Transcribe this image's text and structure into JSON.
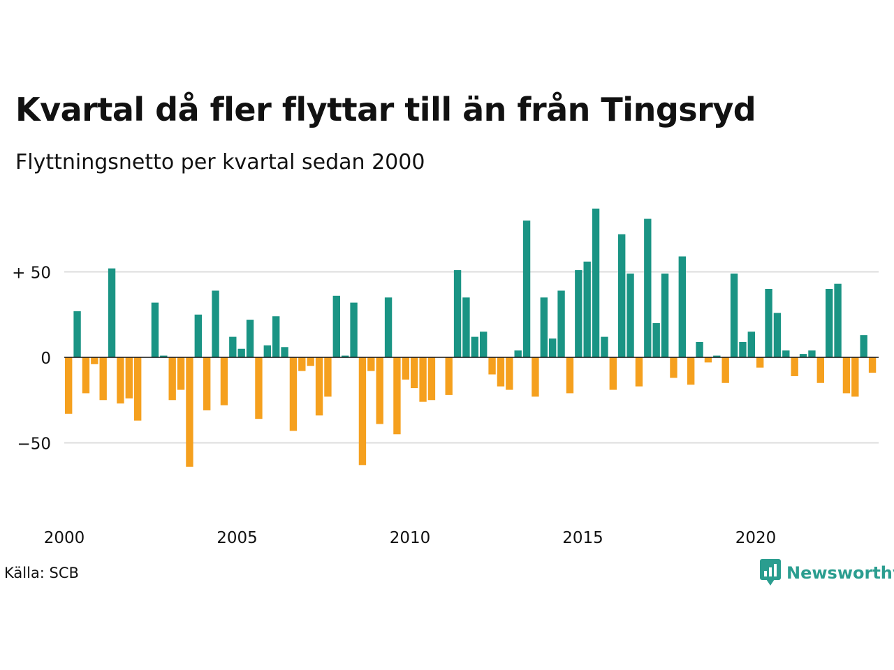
{
  "header": {
    "title": "Kvartal då fler flyttar till än från Tingsryd",
    "subtitle": "Flyttningsnetto per kvartal sedan 2000"
  },
  "footer": {
    "source": "Källa: SCB",
    "brand_name": "Newsworthy",
    "brand_icon": "bar-chart-bubble-icon",
    "brand_color": "#2a9d8f"
  },
  "chart_data": {
    "type": "bar",
    "x_start": "2000 Q1",
    "quarters_per_year": 4,
    "values": [
      -33,
      27,
      -21,
      -4,
      -25,
      52,
      -27,
      -24,
      -37,
      0,
      32,
      1,
      -25,
      -19,
      -64,
      25,
      -31,
      39,
      -28,
      12,
      5,
      22,
      -36,
      7,
      24,
      6,
      -43,
      -8,
      -5,
      -34,
      -23,
      36,
      1,
      32,
      -63,
      -8,
      -39,
      35,
      -45,
      -13,
      -18,
      -26,
      -25,
      0,
      -22,
      51,
      35,
      12,
      15,
      -10,
      -17,
      -19,
      4,
      80,
      -23,
      35,
      11,
      39,
      -21,
      51,
      56,
      87,
      12,
      -19,
      72,
      49,
      -17,
      81,
      20,
      49,
      -12,
      59,
      -16,
      9,
      -3,
      1,
      -15,
      49,
      9,
      15,
      -6,
      40,
      26,
      4,
      -11,
      2,
      4,
      -15,
      40,
      43,
      -21,
      -23,
      13,
      -9
    ],
    "ylim": [
      -75,
      90
    ],
    "yticks": [
      -50,
      0,
      50
    ],
    "ytick_labels": [
      "−50",
      "0",
      "+ 50"
    ],
    "xticks": [
      2000,
      2005,
      2010,
      2015,
      2020
    ],
    "xtick_labels": [
      "2000",
      "2005",
      "2010",
      "2015",
      "2020"
    ],
    "colors": {
      "positive": "#1a9484",
      "negative": "#f5a01e",
      "grid": "#dddddd",
      "zero_line": "#111111"
    },
    "grid": true,
    "legend": "none"
  }
}
